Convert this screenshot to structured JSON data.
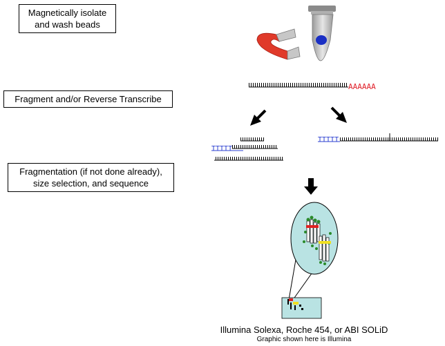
{
  "steps": {
    "step1": "Magnetically isolate\nand wash beads",
    "step2": "Fragment and/or Reverse Transcribe",
    "step3": "Fragmentation (if not done already),\nsize selection, and sequence"
  },
  "sequence": {
    "poly_a": "AAAAAA",
    "poly_t": "TTTTT"
  },
  "caption": {
    "platforms": "Illumina Solexa, Roche 454, or ABI SOLiD",
    "note": "Graphic shown here is Illumina"
  },
  "colors": {
    "poly_a": "#e0202a",
    "poly_t": "#2b3fd0",
    "flowcell": "#b9e3e3",
    "magnet": "#e03a2a"
  }
}
